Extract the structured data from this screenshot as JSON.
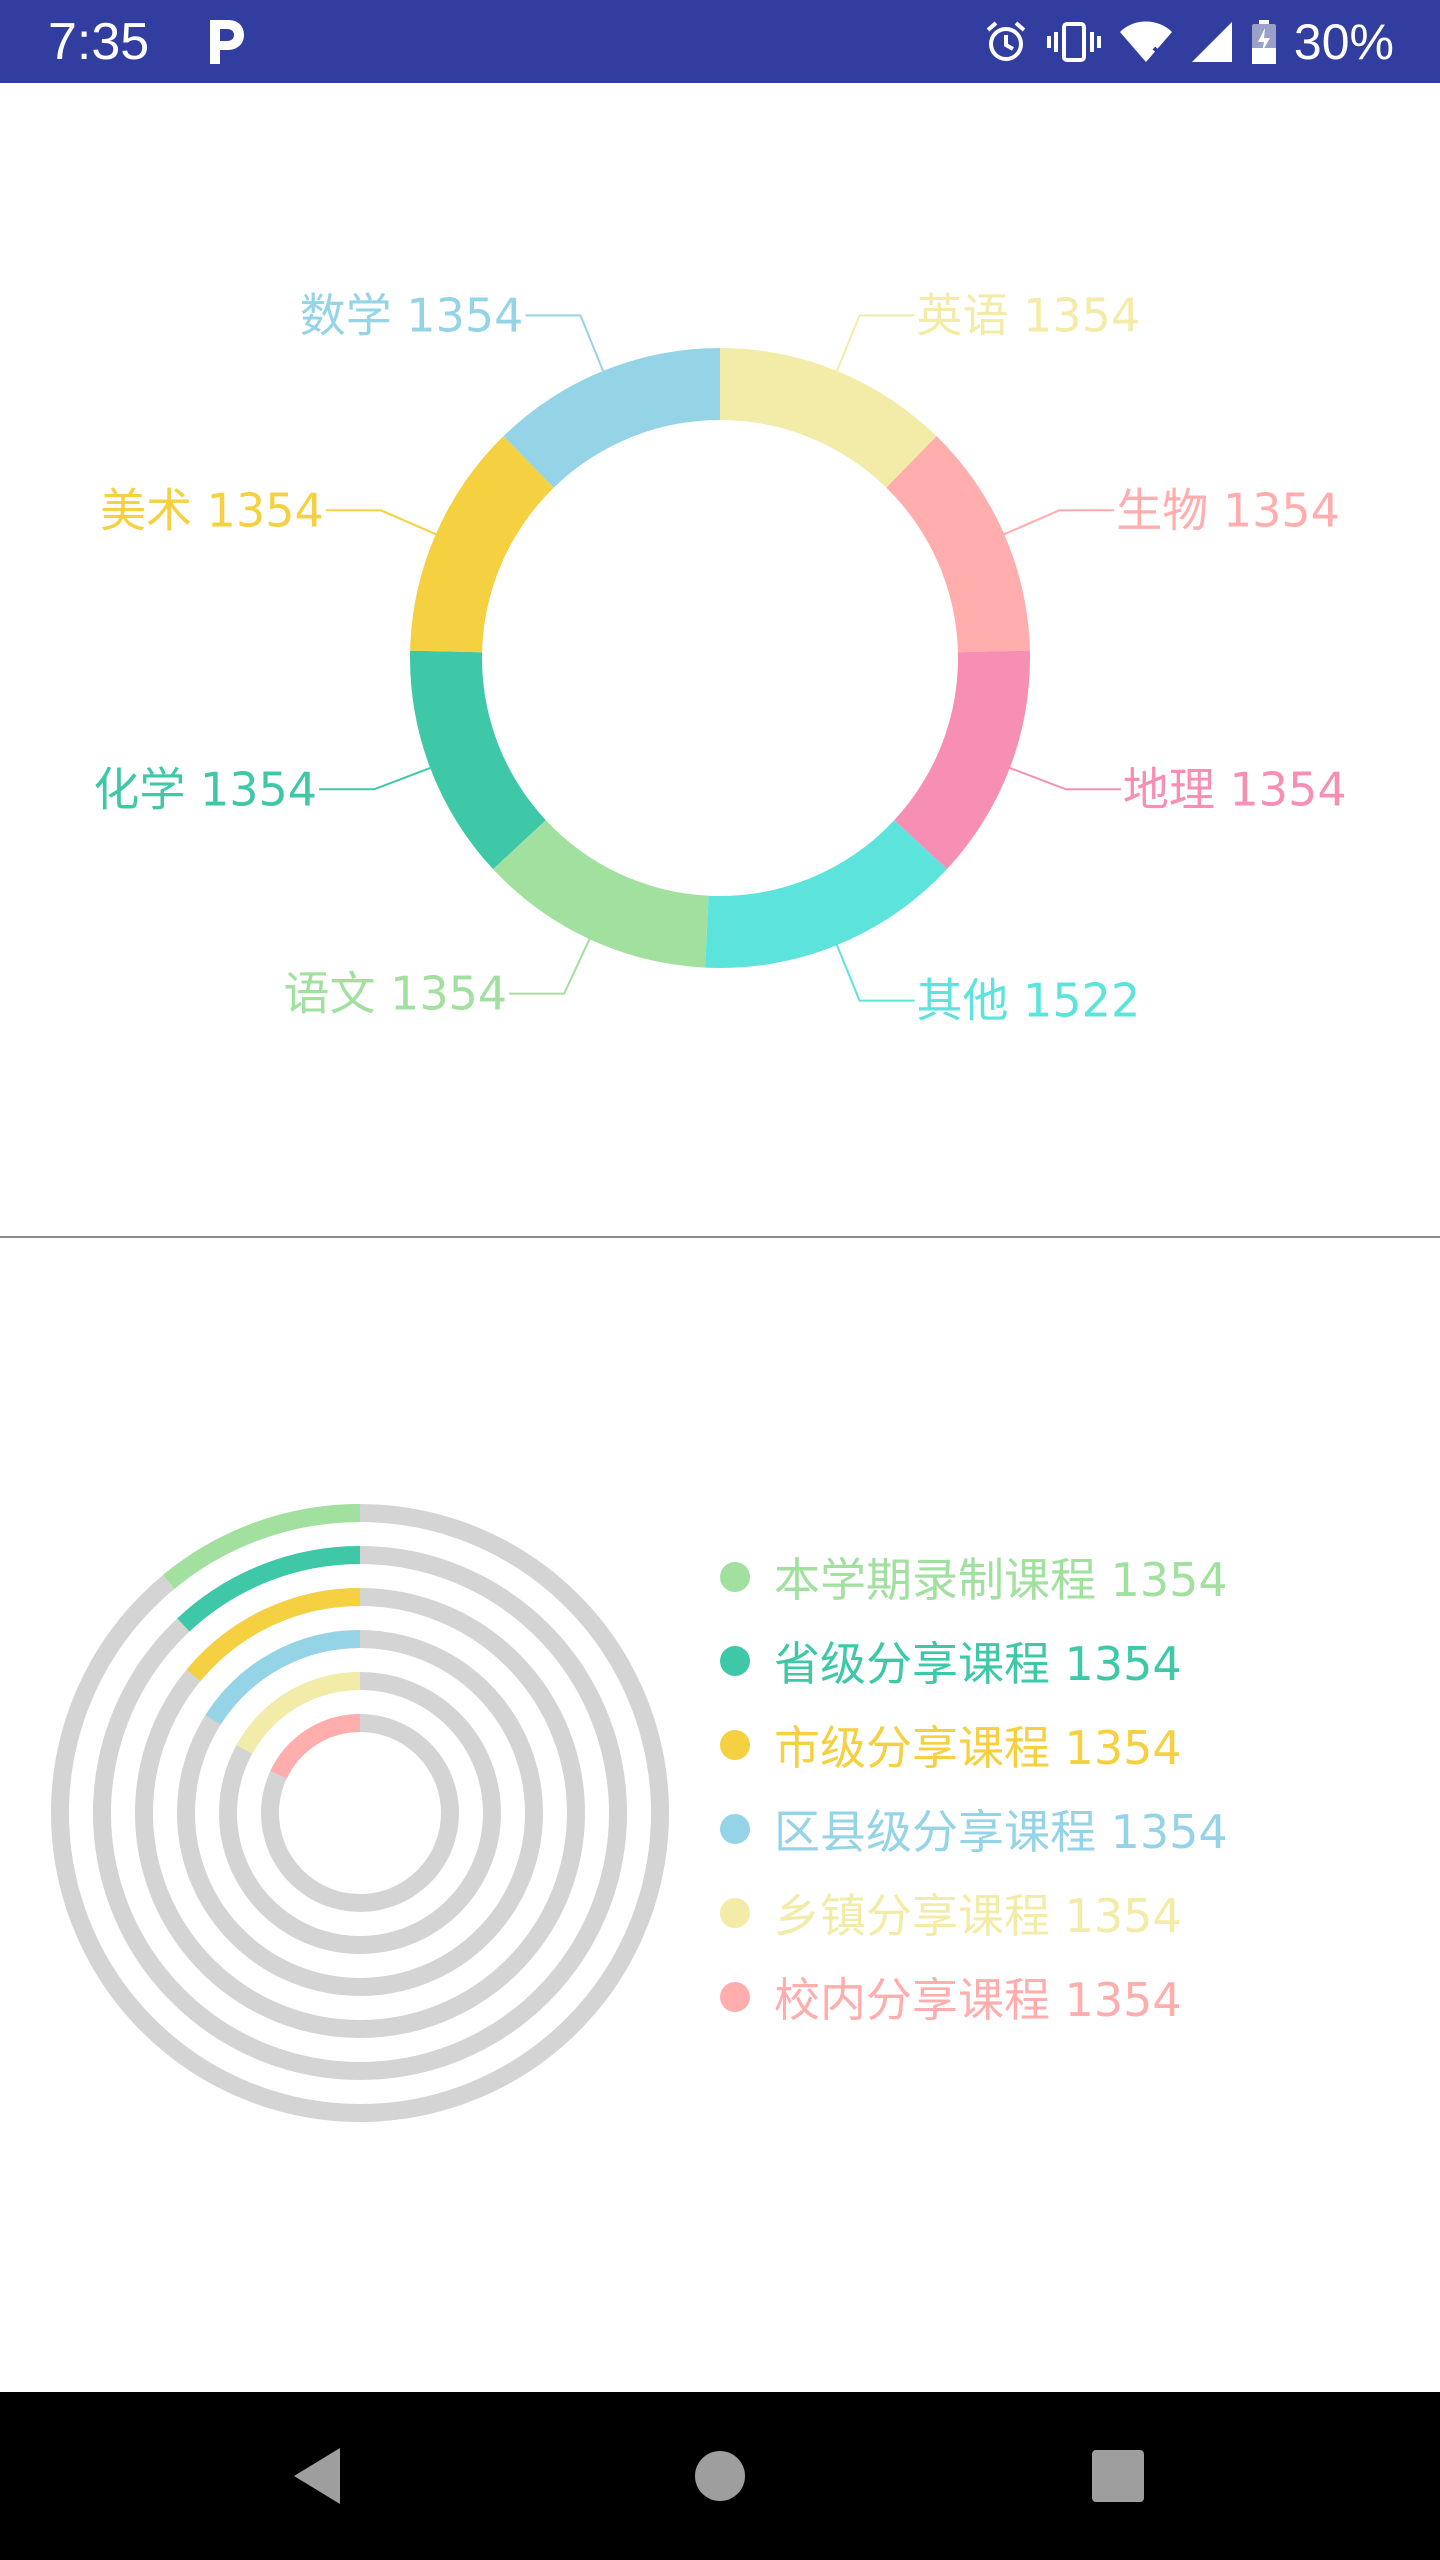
{
  "status_bar": {
    "time": "7:35",
    "battery": "30%",
    "icons": [
      "parking-icon",
      "alarm-icon",
      "vibrate-icon",
      "wifi-icon",
      "signal-icon",
      "battery-icon"
    ],
    "background": "#313ea0"
  },
  "chart_data": [
    {
      "type": "pie",
      "donut": true,
      "slices": [
        {
          "label": "英语 1354",
          "name": "英语",
          "value": 1354,
          "color": "#f3eca8"
        },
        {
          "label": "生物 1354",
          "name": "生物",
          "value": 1354,
          "color": "#ffadad"
        },
        {
          "label": "地理 1354",
          "name": "地理",
          "value": 1354,
          "color": "#f78fb5"
        },
        {
          "label": "其他 1522",
          "name": "其他",
          "value": 1522,
          "color": "#5ce3db"
        },
        {
          "label": "语文 1354",
          "name": "语文",
          "value": 1354,
          "color": "#a1e09f"
        },
        {
          "label": "化学 1354",
          "name": "化学",
          "value": 1354,
          "color": "#3ec8a8"
        },
        {
          "label": "美术 1354",
          "name": "美术",
          "value": 1354,
          "color": "#f5d040"
        },
        {
          "label": "数学 1354",
          "name": "数学",
          "value": 1354,
          "color": "#94d4e6"
        }
      ]
    },
    {
      "type": "pie",
      "variant": "concentric-rings",
      "track_color": "#d4d4d4",
      "rings": [
        {
          "label": "本学期录制课程 1354",
          "value": 1354,
          "color": "#a1e09f",
          "fraction": 0.11
        },
        {
          "label": "省级分享课程 1354",
          "value": 1354,
          "color": "#3ec8a8",
          "fraction": 0.12
        },
        {
          "label": "市级分享课程 1354",
          "value": 1354,
          "color": "#f5d040",
          "fraction": 0.14
        },
        {
          "label": "区县级分享课程 1354",
          "value": 1354,
          "color": "#94d4e6",
          "fraction": 0.16
        },
        {
          "label": "乡镇分享课程 1354",
          "value": 1354,
          "color": "#f3eca8",
          "fraction": 0.17
        },
        {
          "label": "校内分享课程 1354",
          "value": 1354,
          "color": "#ffadad",
          "fraction": 0.18
        }
      ]
    }
  ],
  "nav_bar": {
    "icons": [
      "back-icon",
      "home-icon",
      "recents-icon"
    ]
  }
}
